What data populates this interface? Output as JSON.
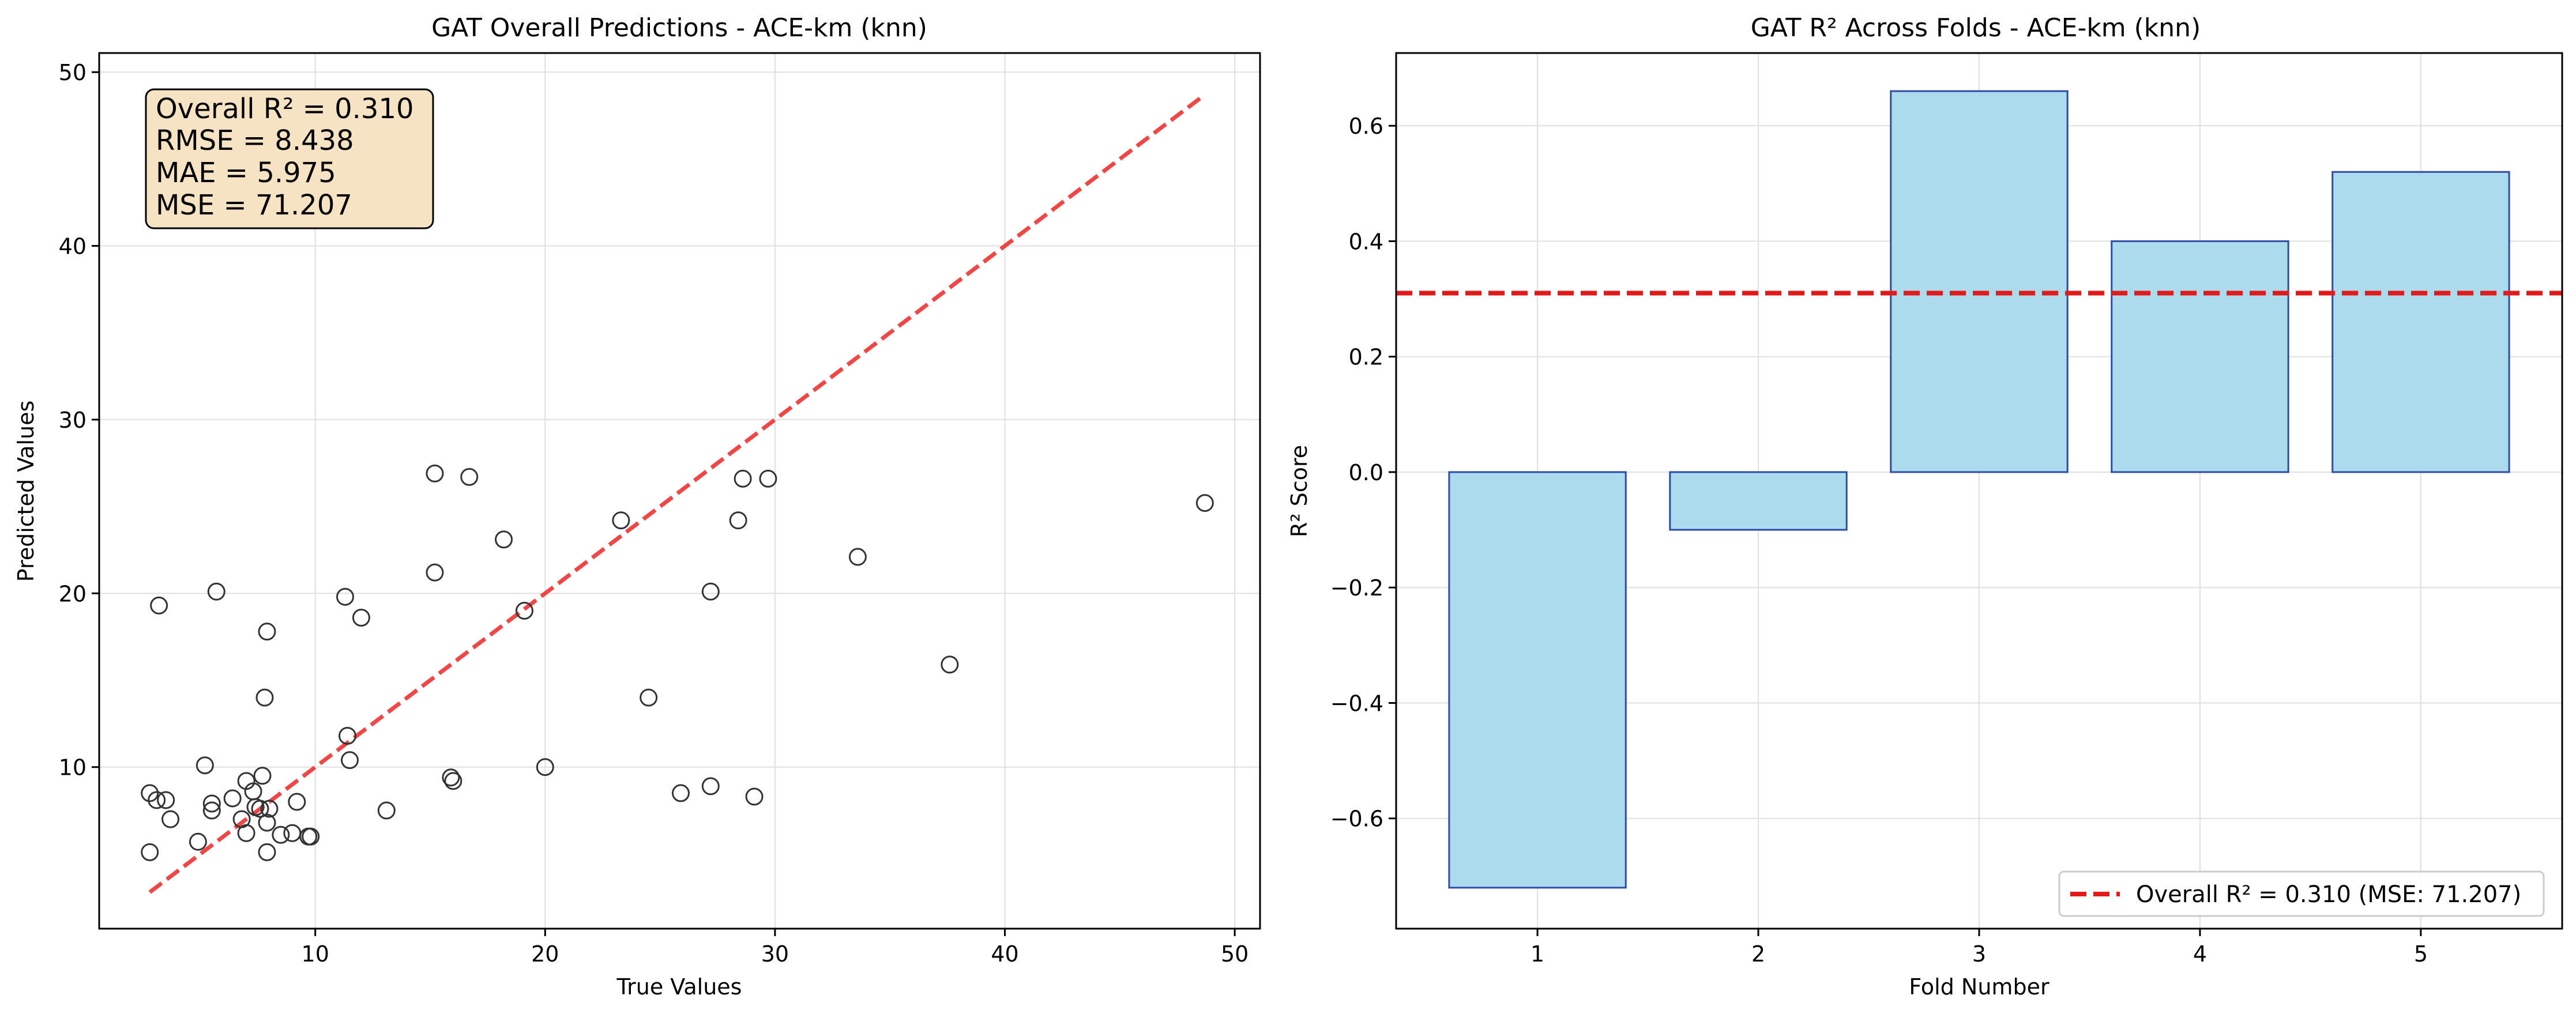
{
  "chart_data": [
    {
      "type": "scatter",
      "title": "GAT Overall Predictions - ACE-km (knn)",
      "xlabel": "True Values",
      "ylabel": "Predicted Values",
      "xlim": [
        0.6,
        51.1
      ],
      "ylim": [
        0.7,
        51.1
      ],
      "xticks": [
        10,
        20,
        30,
        40,
        50
      ],
      "yticks": [
        10,
        20,
        30,
        40,
        50
      ],
      "grid": true,
      "marker": "open-circle",
      "marker_color": "#333333",
      "points": [
        [
          2.8,
          5.1
        ],
        [
          2.8,
          8.5
        ],
        [
          3.1,
          8.1
        ],
        [
          3.2,
          19.3
        ],
        [
          3.5,
          8.1
        ],
        [
          3.7,
          7.0
        ],
        [
          4.9,
          5.7
        ],
        [
          5.2,
          10.1
        ],
        [
          5.5,
          7.5
        ],
        [
          5.5,
          7.9
        ],
        [
          5.7,
          20.1
        ],
        [
          6.4,
          8.2
        ],
        [
          6.8,
          7.0
        ],
        [
          7.0,
          6.2
        ],
        [
          7.0,
          9.2
        ],
        [
          7.3,
          8.6
        ],
        [
          7.4,
          7.7
        ],
        [
          7.6,
          7.6
        ],
        [
          7.7,
          9.5
        ],
        [
          7.8,
          14.0
        ],
        [
          7.9,
          17.8
        ],
        [
          7.9,
          6.8
        ],
        [
          7.9,
          5.1
        ],
        [
          8.0,
          7.6
        ],
        [
          8.5,
          6.1
        ],
        [
          9.0,
          6.2
        ],
        [
          9.2,
          8.0
        ],
        [
          9.7,
          6.0
        ],
        [
          9.8,
          6.0
        ],
        [
          11.3,
          19.8
        ],
        [
          11.4,
          11.8
        ],
        [
          11.5,
          10.4
        ],
        [
          12.0,
          18.6
        ],
        [
          13.1,
          7.5
        ],
        [
          15.2,
          26.9
        ],
        [
          15.2,
          21.2
        ],
        [
          15.9,
          9.4
        ],
        [
          16.0,
          9.2
        ],
        [
          16.7,
          26.7
        ],
        [
          18.2,
          23.1
        ],
        [
          19.1,
          19.0
        ],
        [
          20.0,
          10.0
        ],
        [
          23.3,
          24.2
        ],
        [
          24.5,
          14.0
        ],
        [
          25.9,
          8.5
        ],
        [
          27.2,
          20.1
        ],
        [
          27.2,
          8.9
        ],
        [
          28.4,
          24.2
        ],
        [
          28.6,
          26.6
        ],
        [
          29.1,
          8.3
        ],
        [
          29.7,
          26.6
        ],
        [
          33.6,
          22.1
        ],
        [
          37.6,
          15.9
        ],
        [
          48.7,
          25.2
        ]
      ],
      "reference_line": {
        "x": [
          2.8,
          48.7
        ],
        "y": [
          2.8,
          48.7
        ],
        "style": "dashed",
        "color": "#f03232"
      },
      "annotation": {
        "lines": [
          "Overall R² = 0.310",
          "RMSE = 8.438",
          "MAE = 5.975",
          "MSE = 71.207"
        ],
        "position": "top-left",
        "background": "#f6e3c4"
      }
    },
    {
      "type": "bar",
      "title": "GAT R² Across Folds - ACE-km (knn)",
      "xlabel": "Fold Number",
      "ylabel": "R² Score",
      "categories": [
        "1",
        "2",
        "3",
        "4",
        "5"
      ],
      "values": [
        -0.72,
        -0.1,
        0.66,
        0.4,
        0.52
      ],
      "ylim": [
        -0.791,
        0.726
      ],
      "yticks": [
        -0.6,
        -0.4,
        -0.2,
        0.0,
        0.2,
        0.4,
        0.6
      ],
      "ytick_labels": [
        "−0.6",
        "−0.4",
        "−0.2",
        "0.0",
        "0.2",
        "0.4",
        "0.6"
      ],
      "grid": true,
      "bar_color": "#abdbec",
      "bar_edge_color": "#2f4aa8",
      "hline": {
        "y": 0.31,
        "style": "dashed",
        "color": "#e41a1a"
      },
      "legend": {
        "entries": [
          "Overall R² = 0.310 (MSE: 71.207)"
        ],
        "position": "lower-right"
      }
    }
  ]
}
